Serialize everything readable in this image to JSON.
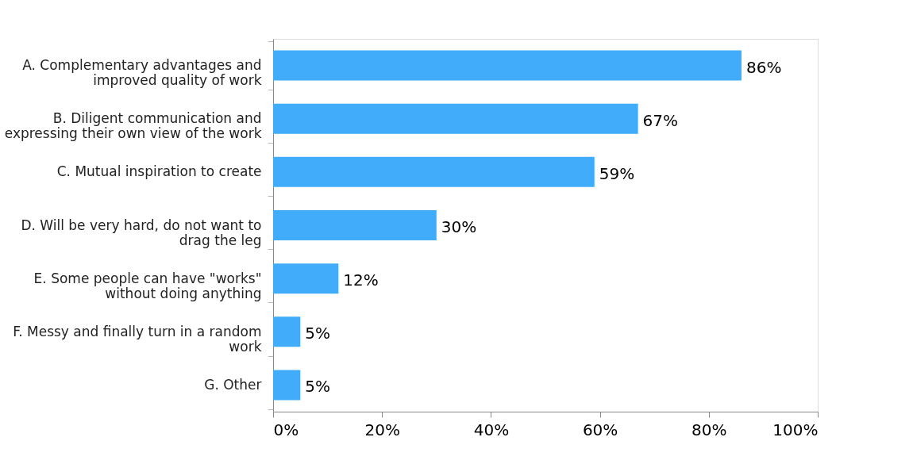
{
  "chart_data": {
    "type": "bar",
    "orientation": "horizontal",
    "categories": [
      "A. Complementary advantages and improved quality of work",
      "B. Diligent communication and expressing their own view of the work",
      "C. Mutual inspiration to create",
      "D.  Will be very hard, do not want to drag the leg",
      "E. Some people can have \"works\" without doing anything",
      "F. Messy and finally turn in a random work",
      "G. Other"
    ],
    "values": [
      86,
      67,
      59,
      30,
      12,
      5,
      5
    ],
    "value_labels": [
      "86%",
      "67%",
      "59%",
      "30%",
      "12%",
      "5%",
      "5%"
    ],
    "color": "#41adfa",
    "xlim": [
      0,
      100
    ],
    "xticks": [
      {
        "value": 0,
        "label": "0%"
      },
      {
        "value": 20,
        "label": "20%"
      },
      {
        "value": 40,
        "label": "40%"
      },
      {
        "value": 60,
        "label": "60%"
      },
      {
        "value": 80,
        "label": "80%"
      },
      {
        "value": 100,
        "label": "100%"
      }
    ],
    "grid": false
  }
}
